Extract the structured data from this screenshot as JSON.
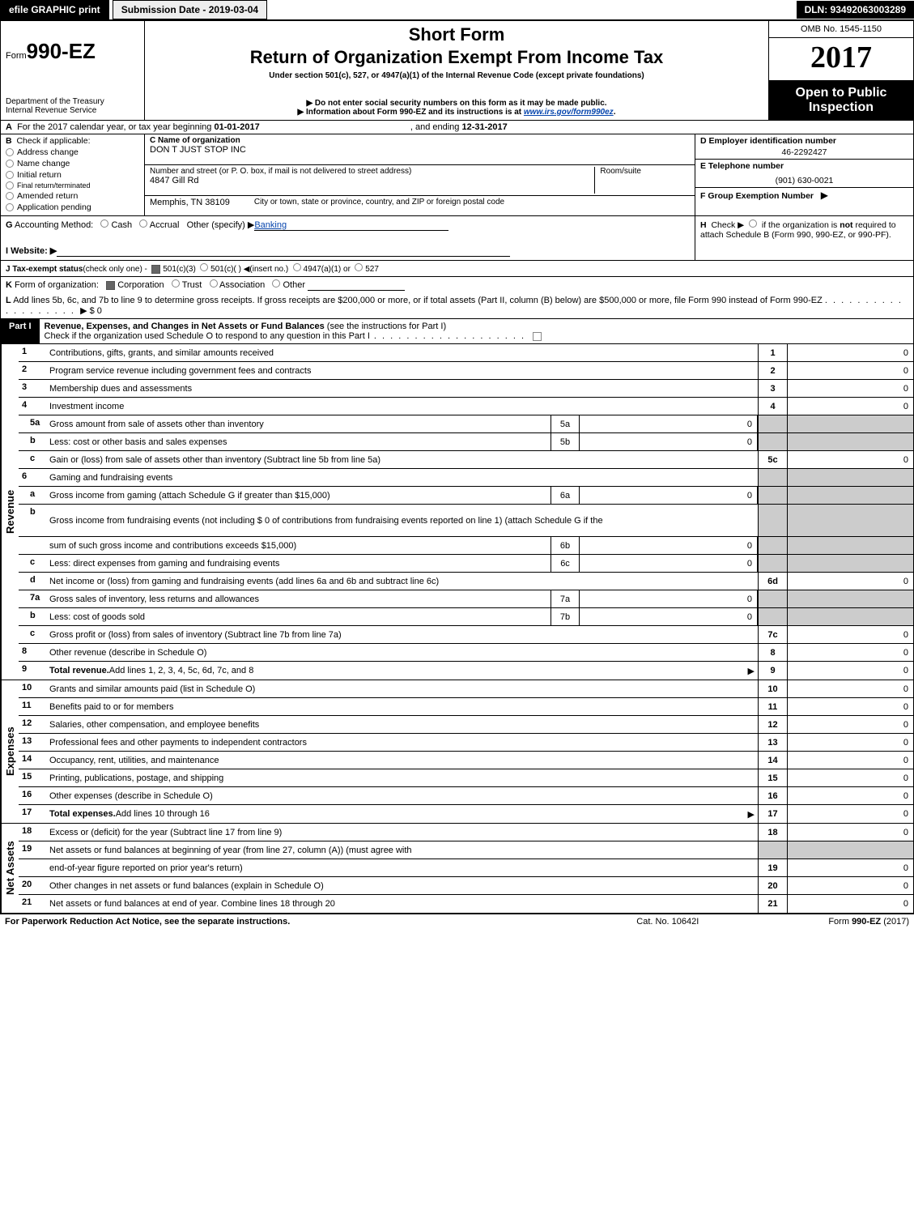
{
  "colors": {
    "black": "#000000",
    "white": "#ffffff",
    "gray_fill": "#cccccc",
    "link_blue": "#0645ad",
    "light_gray": "#eeeeee"
  },
  "topbar": {
    "efile": "efile GRAPHIC print",
    "submission": "Submission Date - 2019-03-04",
    "dln": "DLN: 93492063003289"
  },
  "header": {
    "form_prefix": "Form",
    "form_number": "990-EZ",
    "dept1": "Department of the Treasury",
    "dept2": "Internal Revenue Service",
    "short_form": "Short Form",
    "title": "Return of Organization Exempt From Income Tax",
    "under_section": "Under section 501(c), 527, or 4947(a)(1) of the Internal Revenue Code (except private foundations)",
    "donot": "▶ Do not enter social security numbers on this form as it may be made public.",
    "info_prefix": "▶ Information about Form 990-EZ and its instructions is at ",
    "info_url": "www.irs.gov/form990ez",
    "info_suffix": ".",
    "omb": "OMB No. 1545-1150",
    "year": "2017",
    "open_public": "Open to Public Inspection"
  },
  "row_a": {
    "label": "A",
    "text1": "For the 2017 calendar year, or tax year beginning ",
    "begin": "01-01-2017",
    "text2": ", and ending ",
    "end": "12-31-2017"
  },
  "section_b": {
    "label": "B",
    "check_if": "Check if applicable:",
    "items": [
      "Address change",
      "Name change",
      "Initial return",
      "Final return/terminated",
      "Amended return",
      "Application pending"
    ]
  },
  "section_c": {
    "name_label": "C Name of organization",
    "name_val": "DON T JUST STOP INC",
    "street_label": "Number and street (or P. O. box, if mail is not delivered to street address)",
    "street_val": "4847 Gill Rd",
    "room_label": "Room/suite",
    "city_label": "City or town, state or province, country, and ZIP or foreign postal code",
    "city_val": "Memphis, TN  38109"
  },
  "section_def": {
    "d_label": "D Employer identification number",
    "d_val": "46-2292427",
    "e_label": "E Telephone number",
    "e_val": "(901) 630-0021",
    "f_label": "F Group Exemption Number",
    "f_arrow": "▶"
  },
  "row_g": {
    "label": "G",
    "text": "Accounting Method:",
    "opt_cash": "Cash",
    "opt_accrual": "Accrual",
    "opt_other": "Other (specify) ▶",
    "other_val": "Banking"
  },
  "row_h": {
    "label": "H",
    "text1": "Check ▶",
    "text2": "if the organization is ",
    "not": "not",
    "text3": " required to attach Schedule B (Form 990, 990-EZ, or 990-PF)."
  },
  "row_i": {
    "label": "I Website: ▶"
  },
  "row_j": {
    "label": "J Tax-exempt status",
    "suffix": "(check only one) -",
    "opt1": "501(c)(3)",
    "opt2": "501(c)(  ) ◀(insert no.)",
    "opt3": "4947(a)(1) or",
    "opt4": "527"
  },
  "row_k": {
    "label": "K",
    "text": "Form of organization:",
    "opts": [
      "Corporation",
      "Trust",
      "Association",
      "Other"
    ]
  },
  "row_l": {
    "label": "L",
    "text": "Add lines 5b, 6c, and 7b to line 9 to determine gross receipts. If gross receipts are $200,000 or more, or if total assets (Part II, column (B) below) are $500,000 or more, file Form 990 instead of Form 990-EZ",
    "arrow_val": "▶ $ 0"
  },
  "part1": {
    "tag": "Part I",
    "title": "Revenue, Expenses, and Changes in Net Assets or Fund Balances",
    "title_suffix": " (see the instructions for Part I)",
    "check_line": "Check if the organization used Schedule O to respond to any question in this Part I"
  },
  "sections": {
    "revenue_label": "Revenue",
    "expenses_label": "Expenses",
    "netassets_label": "Net Assets"
  },
  "lines": [
    {
      "n": "1",
      "desc": "Contributions, gifts, grants, and similar amounts received",
      "out_n": "1",
      "out_v": "0"
    },
    {
      "n": "2",
      "desc": "Program service revenue including government fees and contracts",
      "out_n": "2",
      "out_v": "0"
    },
    {
      "n": "3",
      "desc": "Membership dues and assessments",
      "out_n": "3",
      "out_v": "0"
    },
    {
      "n": "4",
      "desc": "Investment income",
      "out_n": "4",
      "out_v": "0"
    },
    {
      "n": "5a",
      "sub": true,
      "desc": "Gross amount from sale of assets other than inventory",
      "in_n": "5a",
      "in_v": "0",
      "gray_out": true
    },
    {
      "n": "b",
      "sub": true,
      "desc": "Less: cost or other basis and sales expenses",
      "in_n": "5b",
      "in_v": "0",
      "gray_out": true
    },
    {
      "n": "c",
      "sub": true,
      "desc": "Gain or (loss) from sale of assets other than inventory (Subtract line 5b from line 5a)",
      "out_n": "5c",
      "out_v": "0"
    },
    {
      "n": "6",
      "desc": "Gaming and fundraising events",
      "gray_out": true,
      "no_out_v": true
    },
    {
      "n": "a",
      "sub": true,
      "desc": "Gross income from gaming (attach Schedule G if greater than $15,000)",
      "in_n": "6a",
      "in_v": "0",
      "gray_out": true
    },
    {
      "n": "b",
      "sub": true,
      "desc": "Gross income from fundraising events (not including $  0               of contributions from fundraising events reported on line 1) (attach Schedule G if the",
      "gray_all": true,
      "tall": true
    },
    {
      "n": "",
      "sub": true,
      "desc": "sum of such gross income and contributions exceeds $15,000)",
      "in_n": "6b",
      "in_v": "0",
      "gray_out": true
    },
    {
      "n": "c",
      "sub": true,
      "desc": "Less: direct expenses from gaming and fundraising events",
      "in_n": "6c",
      "in_v": "0",
      "gray_out": true
    },
    {
      "n": "d",
      "sub": true,
      "desc": "Net income or (loss) from gaming and fundraising events (add lines 6a and 6b and subtract line 6c)",
      "out_n": "6d",
      "out_v": "0"
    },
    {
      "n": "7a",
      "sub": true,
      "desc": "Gross sales of inventory, less returns and allowances",
      "in_n": "7a",
      "in_v": "0",
      "gray_out": true
    },
    {
      "n": "b",
      "sub": true,
      "desc": "Less: cost of goods sold",
      "in_n": "7b",
      "in_v": "0",
      "gray_out": true
    },
    {
      "n": "c",
      "sub": true,
      "desc": "Gross profit or (loss) from sales of inventory (Subtract line 7b from line 7a)",
      "out_n": "7c",
      "out_v": "0"
    },
    {
      "n": "8",
      "desc": "Other revenue (describe in Schedule O)",
      "out_n": "8",
      "out_v": "0"
    },
    {
      "n": "9",
      "desc": "Total revenue. Add lines 1, 2, 3, 4, 5c, 6d, 7c, and 8",
      "bold": true,
      "arrow": true,
      "out_n": "9",
      "out_v": "0"
    }
  ],
  "exp_lines": [
    {
      "n": "10",
      "desc": "Grants and similar amounts paid (list in Schedule O)",
      "out_n": "10",
      "out_v": "0"
    },
    {
      "n": "11",
      "desc": "Benefits paid to or for members",
      "out_n": "11",
      "out_v": "0"
    },
    {
      "n": "12",
      "desc": "Salaries, other compensation, and employee benefits",
      "out_n": "12",
      "out_v": "0"
    },
    {
      "n": "13",
      "desc": "Professional fees and other payments to independent contractors",
      "out_n": "13",
      "out_v": "0"
    },
    {
      "n": "14",
      "desc": "Occupancy, rent, utilities, and maintenance",
      "out_n": "14",
      "out_v": "0"
    },
    {
      "n": "15",
      "desc": "Printing, publications, postage, and shipping",
      "out_n": "15",
      "out_v": "0"
    },
    {
      "n": "16",
      "desc": "Other expenses (describe in Schedule O)",
      "out_n": "16",
      "out_v": "0"
    },
    {
      "n": "17",
      "desc": "Total expenses. Add lines 10 through 16",
      "bold": true,
      "arrow": true,
      "out_n": "17",
      "out_v": "0"
    }
  ],
  "na_lines": [
    {
      "n": "18",
      "desc": "Excess or (deficit) for the year (Subtract line 17 from line 9)",
      "out_n": "18",
      "out_v": "0"
    },
    {
      "n": "19",
      "desc": "Net assets or fund balances at beginning of year (from line 27, column (A)) (must agree with",
      "gray_out": true,
      "no_out_v": true
    },
    {
      "n": "",
      "desc": "end-of-year figure reported on prior year's return)",
      "out_n": "19",
      "out_v": "0"
    },
    {
      "n": "20",
      "desc": "Other changes in net assets or fund balances (explain in Schedule O)",
      "out_n": "20",
      "out_v": "0"
    },
    {
      "n": "21",
      "desc": "Net assets or fund balances at end of year. Combine lines 18 through 20",
      "out_n": "21",
      "out_v": "0"
    }
  ],
  "footer": {
    "left": "For Paperwork Reduction Act Notice, see the separate instructions.",
    "mid": "Cat. No. 10642I",
    "right_prefix": "Form ",
    "right_form": "990-EZ",
    "right_suffix": " (2017)"
  }
}
